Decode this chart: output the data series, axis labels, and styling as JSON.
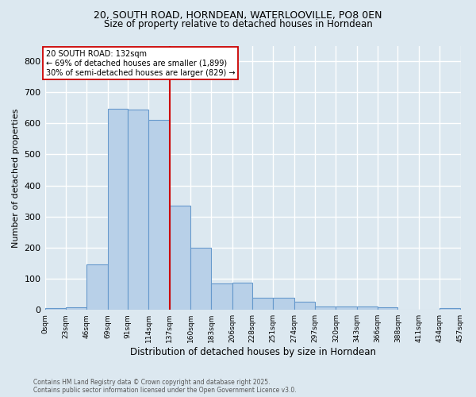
{
  "title_line1": "20, SOUTH ROAD, HORNDEAN, WATERLOOVILLE, PO8 0EN",
  "title_line2": "Size of property relative to detached houses in Horndean",
  "xlabel": "Distribution of detached houses by size in Horndean",
  "ylabel": "Number of detached properties",
  "bar_color": "#b8d0e8",
  "bar_edge_color": "#6699cc",
  "background_color": "#dce8f0",
  "grid_color": "#ffffff",
  "bin_edges": [
    0,
    23,
    46,
    69,
    91,
    114,
    137,
    160,
    183,
    206,
    228,
    251,
    274,
    297,
    320,
    343,
    366,
    388,
    411,
    434,
    457
  ],
  "bar_heights": [
    5,
    8,
    145,
    648,
    645,
    612,
    335,
    200,
    85,
    87,
    40,
    38,
    25,
    10,
    12,
    12,
    8,
    0,
    0,
    5
  ],
  "tick_labels": [
    "0sqm",
    "23sqm",
    "46sqm",
    "69sqm",
    "91sqm",
    "114sqm",
    "137sqm",
    "160sqm",
    "183sqm",
    "206sqm",
    "228sqm",
    "251sqm",
    "274sqm",
    "297sqm",
    "320sqm",
    "343sqm",
    "366sqm",
    "388sqm",
    "411sqm",
    "434sqm",
    "457sqm"
  ],
  "vline_x": 137,
  "vline_color": "#cc0000",
  "annotation_text": "20 SOUTH ROAD: 132sqm\n← 69% of detached houses are smaller (1,899)\n30% of semi-detached houses are larger (829) →",
  "annotation_box_color": "#ffffff",
  "annotation_box_edge": "#cc0000",
  "ylim": [
    0,
    850
  ],
  "yticks": [
    0,
    100,
    200,
    300,
    400,
    500,
    600,
    700,
    800
  ],
  "footnote": "Contains HM Land Registry data © Crown copyright and database right 2025.\nContains public sector information licensed under the Open Government Licence v3.0."
}
